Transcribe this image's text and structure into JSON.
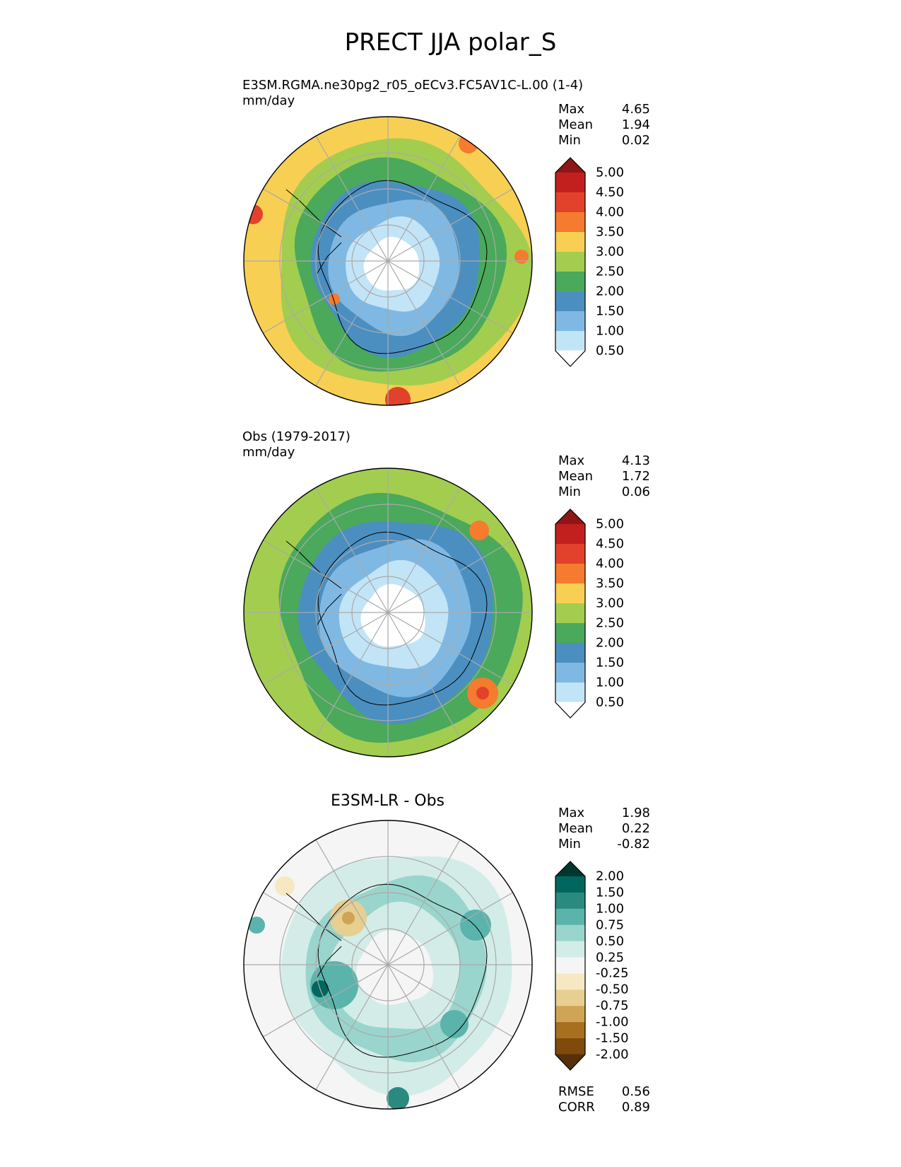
{
  "title": "PRECT JJA polar_S",
  "panels": [
    {
      "title_line1": "E3SM.RGMA.ne30pg2_r05_oECv3.FC5AV1C-L.00 (1-4)",
      "title_line2": "mm/day",
      "stats": [
        {
          "label": "Max",
          "value": "4.65"
        },
        {
          "label": "Mean",
          "value": "1.94"
        },
        {
          "label": "Min",
          "value": "0.02"
        }
      ]
    },
    {
      "title_line1": "Obs (1979-2017)",
      "title_line2": "mm/day",
      "stats": [
        {
          "label": "Max",
          "value": "4.13"
        },
        {
          "label": "Mean",
          "value": "1.72"
        },
        {
          "label": "Min",
          "value": "0.06"
        }
      ]
    },
    {
      "title_center": "E3SM-LR - Obs",
      "stats": [
        {
          "label": "Max",
          "value": "1.98"
        },
        {
          "label": "Mean",
          "value": "0.22"
        },
        {
          "label": "Min",
          "value": "-0.82"
        }
      ],
      "bottom_stats": [
        {
          "label": "RMSE",
          "value": "0.56"
        },
        {
          "label": "CORR",
          "value": "0.89"
        }
      ]
    }
  ],
  "colorbar_precip": {
    "labels": [
      "5.00",
      "4.50",
      "4.00",
      "3.50",
      "3.00",
      "2.50",
      "2.00",
      "1.50",
      "1.00",
      "0.50"
    ],
    "colors": [
      "#8e1616",
      "#c1201f",
      "#e2412b",
      "#f57b2e",
      "#f7cf52",
      "#a3cd4f",
      "#4aa95b",
      "#4b8fc1",
      "#7fb9e3",
      "#c2e4f7",
      "#ffffff"
    ]
  },
  "colorbar_diff": {
    "labels": [
      "2.00",
      "1.50",
      "1.00",
      "0.75",
      "0.50",
      "0.25",
      "-0.25",
      "-0.50",
      "-0.75",
      "-1.00",
      "-1.50",
      "-2.00"
    ],
    "colors": [
      "#00362e",
      "#01665e",
      "#2a8a80",
      "#5ab4ac",
      "#99d5cc",
      "#d3ece8",
      "#f5f5f5",
      "#f6e8c3",
      "#e7cf92",
      "#cfa555",
      "#a6701f",
      "#7f4a0c",
      "#553008"
    ]
  },
  "maps": {
    "precip_model_rings": [
      "#f7cf52",
      "#a3cd4f",
      "#4aa95b",
      "#4b8fc1",
      "#7fb9e3",
      "#c2e4f7",
      "#ffffff"
    ],
    "precip_obs_rings": [
      "#a3cd4f",
      "#4aa95b",
      "#4b8fc1",
      "#7fb9e3",
      "#c2e4f7",
      "#ffffff"
    ],
    "diff_rings": [
      "#f5f5f5",
      "#d3ece8",
      "#99d5cc",
      "#d3ece8",
      "#f5f5f5"
    ]
  }
}
